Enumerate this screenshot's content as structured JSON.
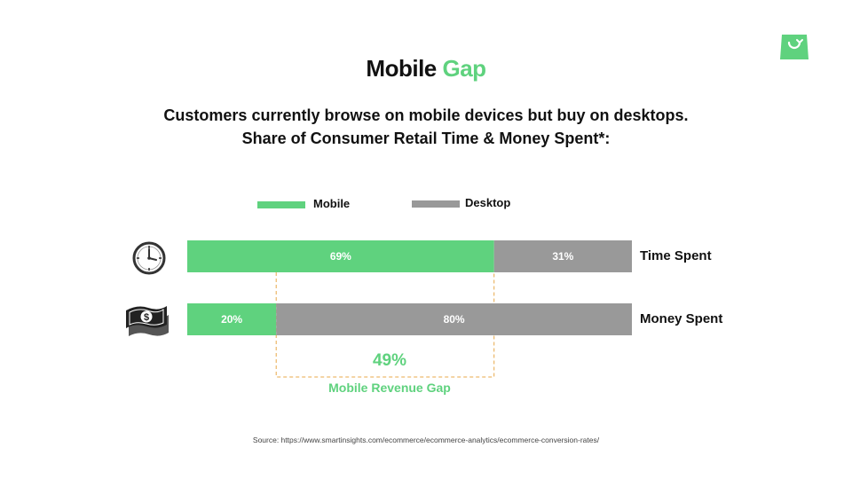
{
  "header": {
    "title_main": "Mobile",
    "title_accent": "Gap",
    "subtitle_line1": "Customers currently browse on mobile devices but buy on desktops.",
    "subtitle_line2": "Share of Consumer Retail Time & Money Spent*:"
  },
  "brand": {
    "logo_icon": "shopping-bag-icon",
    "accent_color": "#5fd27e"
  },
  "legend": [
    {
      "label": "Mobile",
      "color": "#5fd27e"
    },
    {
      "label": "Desktop",
      "color": "#999999"
    }
  ],
  "rows": [
    {
      "label": "Time Spent",
      "icon": "clock-icon"
    },
    {
      "label": "Money Spent",
      "icon": "money-icon"
    }
  ],
  "chart_data": {
    "type": "bar",
    "orientation": "horizontal",
    "stacked": true,
    "categories": [
      "Time Spent",
      "Money Spent"
    ],
    "series": [
      {
        "name": "Mobile",
        "values": [
          69,
          20
        ],
        "labels": [
          "69%",
          "20%"
        ],
        "color": "#5fd27e"
      },
      {
        "name": "Desktop",
        "values": [
          31,
          80
        ],
        "labels": [
          "31%",
          "80%"
        ],
        "color": "#999999"
      }
    ],
    "xlim": [
      0,
      100
    ],
    "legend_position": "top",
    "grid": false,
    "annotation": {
      "value": "49%",
      "label": "Mobile Revenue Gap",
      "color": "#e8a94a"
    }
  },
  "footer": {
    "source": "Source: https://www.smartinsights.com/ecommerce/ecommerce-analytics/ecommerce-conversion-rates/"
  }
}
